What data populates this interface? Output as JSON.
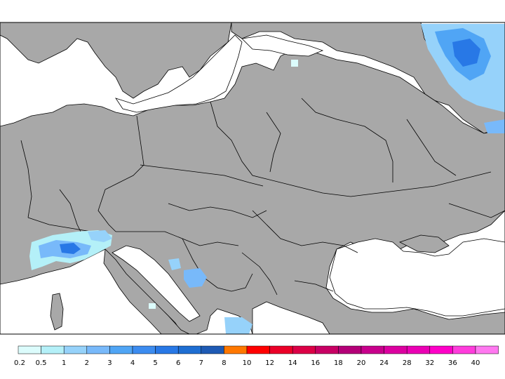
{
  "map": {
    "land_color": "#a8a8a8",
    "water_color": "#ffffff",
    "border_color": "#000000"
  },
  "legend": {
    "bins": [
      {
        "label": "0.2",
        "color": "#dcfcfc"
      },
      {
        "label": "0.5",
        "color": "#b4f0f8"
      },
      {
        "label": "1",
        "color": "#96d2fa"
      },
      {
        "label": "2",
        "color": "#78b9fa"
      },
      {
        "label": "3",
        "color": "#50a5f5"
      },
      {
        "label": "4",
        "color": "#3c8cf0"
      },
      {
        "label": "5",
        "color": "#2878e6"
      },
      {
        "label": "6",
        "color": "#1e6ed2"
      },
      {
        "label": "7",
        "color": "#1e5ab4"
      },
      {
        "label": "8",
        "color": "#ff7800"
      },
      {
        "label": "10",
        "color": "#ff0000"
      },
      {
        "label": "12",
        "color": "#eb0028"
      },
      {
        "label": "14",
        "color": "#dc0046"
      },
      {
        "label": "16",
        "color": "#c80064"
      },
      {
        "label": "18",
        "color": "#b40078"
      },
      {
        "label": "20",
        "color": "#c8008c"
      },
      {
        "label": "24",
        "color": "#dc00a0"
      },
      {
        "label": "28",
        "color": "#eb00b4"
      },
      {
        "label": "32",
        "color": "#ff00c8"
      },
      {
        "label": "36",
        "color": "#ff3cdc"
      },
      {
        "label": "40",
        "color": "#ff78f0"
      }
    ]
  }
}
